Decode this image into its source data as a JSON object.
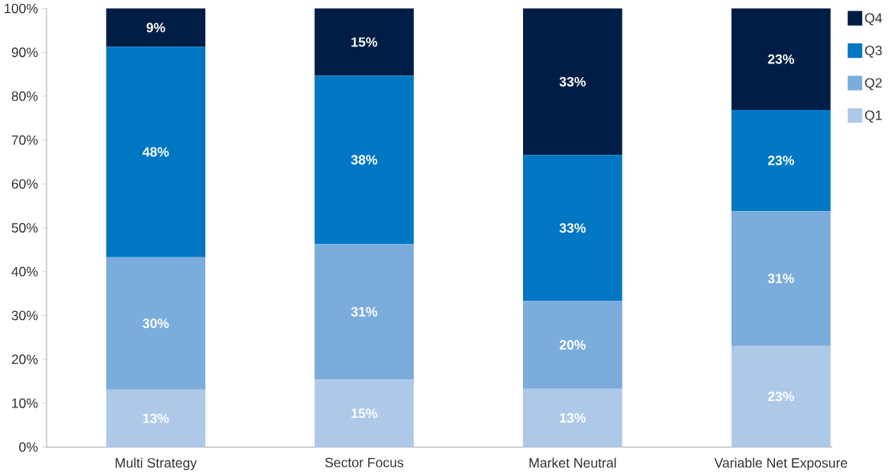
{
  "chart_data": {
    "type": "bar",
    "stacked": true,
    "categories": [
      "Multi Strategy",
      "Sector Focus",
      "Market Neutral",
      "Variable Net Exposure"
    ],
    "series": [
      {
        "name": "Q1",
        "color": "#aec8e8",
        "values": [
          13.1,
          15.4,
          13.3,
          23.1
        ],
        "value_labels": [
          "13%",
          "15%",
          "13%",
          "23%"
        ]
      },
      {
        "name": "Q2",
        "color": "#7aacdc",
        "values": [
          30.2,
          30.9,
          20.0,
          30.7
        ],
        "value_labels": [
          "30%",
          "31%",
          "20%",
          "31%"
        ]
      },
      {
        "name": "Q3",
        "color": "#0077c2",
        "values": [
          48.0,
          38.4,
          33.3,
          23.1
        ],
        "value_labels": [
          "48%",
          "38%",
          "33%",
          "23%"
        ]
      },
      {
        "name": "Q4",
        "color": "#001e45",
        "values": [
          8.7,
          15.3,
          33.4,
          23.1
        ],
        "value_labels": [
          "9%",
          "15%",
          "33%",
          "23%"
        ]
      }
    ],
    "ylim": [
      0,
      100
    ],
    "yticks": [
      {
        "value": 0,
        "label": "0%"
      },
      {
        "value": 10,
        "label": "10%"
      },
      {
        "value": 20,
        "label": "20%"
      },
      {
        "value": 30,
        "label": "30%"
      },
      {
        "value": 40,
        "label": "40%"
      },
      {
        "value": 50,
        "label": "50%"
      },
      {
        "value": 60,
        "label": "60%"
      },
      {
        "value": 70,
        "label": "70%"
      },
      {
        "value": 80,
        "label": "80%"
      },
      {
        "value": 90,
        "label": "90%"
      },
      {
        "value": 100,
        "label": "100%"
      }
    ],
    "legend": "right",
    "grid": false
  }
}
